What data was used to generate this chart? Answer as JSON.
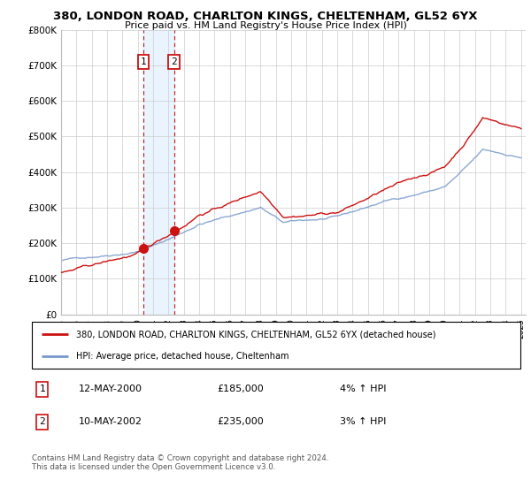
{
  "title": "380, LONDON ROAD, CHARLTON KINGS, CHELTENHAM, GL52 6YX",
  "subtitle": "Price paid vs. HM Land Registry's House Price Index (HPI)",
  "x_start_year": 1995,
  "x_end_year": 2025,
  "ylim": [
    0,
    800000
  ],
  "yticks": [
    0,
    100000,
    200000,
    300000,
    400000,
    500000,
    600000,
    700000,
    800000
  ],
  "ytick_labels": [
    "£0",
    "£100K",
    "£200K",
    "£300K",
    "£400K",
    "£500K",
    "£600K",
    "£700K",
    "£800K"
  ],
  "hpi_color": "#7799cc",
  "price_color": "#cc1111",
  "sale1_year": 2000.36,
  "sale1_price": 185000,
  "sale2_year": 2002.36,
  "sale2_price": 235000,
  "legend_label_price": "380, LONDON ROAD, CHARLTON KINGS, CHELTENHAM, GL52 6YX (detached house)",
  "legend_label_hpi": "HPI: Average price, detached house, Cheltenham",
  "table_row1_num": "1",
  "table_row1_date": "12-MAY-2000",
  "table_row1_price": "£185,000",
  "table_row1_hpi": "4% ↑ HPI",
  "table_row2_num": "2",
  "table_row2_date": "10-MAY-2002",
  "table_row2_price": "£235,000",
  "table_row2_hpi": "3% ↑ HPI",
  "footnote": "Contains HM Land Registry data © Crown copyright and database right 2024.\nThis data is licensed under the Open Government Licence v3.0.",
  "background_color": "#ffffff",
  "grid_color": "#cccccc",
  "shaded_region_color": "#ddeeff",
  "shaded_region_alpha": 0.6
}
